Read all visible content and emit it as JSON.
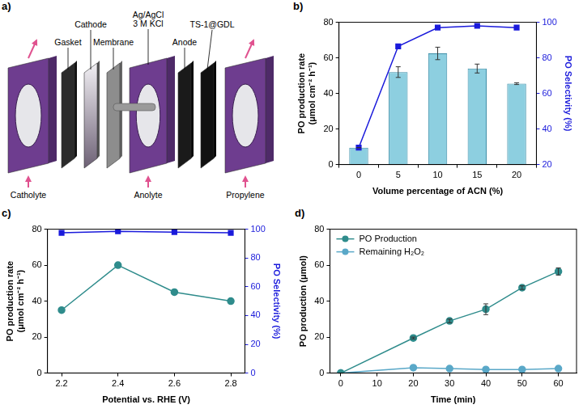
{
  "diagram": {
    "label": "a)",
    "top_labels": [
      "Gasket",
      "Cathode",
      "Membrane",
      "Ag/AgCl 3 M KCl",
      "Anode",
      "TS-1@GDL"
    ],
    "flow_labels": [
      "Catholyte",
      "Anolyte",
      "Propylene"
    ]
  },
  "chart_data": [
    {
      "panel": "b)",
      "type": "bar",
      "categories": [
        0,
        5,
        10,
        15,
        20
      ],
      "x_label": "Volume percentage of ACN (%)",
      "y_label": "PO production rate (μmol cm⁻² h⁻¹)",
      "y2_label": "PO Selectivity (%)",
      "ylim": [
        0,
        80
      ],
      "yticks": [
        0,
        20,
        40,
        60,
        80
      ],
      "y2lim": [
        20,
        100
      ],
      "y2ticks": [
        20,
        40,
        60,
        80,
        100
      ],
      "grid": false,
      "series": [
        {
          "type": "bar",
          "color": "#8dcfe0",
          "values": [
            9.5,
            52,
            62.5,
            54,
            45.5
          ],
          "errors": [
            0,
            3,
            3.5,
            2.5,
            0.5
          ]
        },
        {
          "type": "line",
          "axis": "y2",
          "color": "#1a1adb",
          "marker": "square",
          "values": [
            29.5,
            86.5,
            97,
            98,
            97
          ]
        }
      ]
    },
    {
      "panel": "c)",
      "type": "line",
      "x": [
        2.2,
        2.4,
        2.6,
        2.8
      ],
      "x_label": "Potential vs. RHE (V)",
      "y_label": "PO production rate (μmol cm⁻² h⁻¹)",
      "y2_label": "PO Selectivity (%)",
      "xlim": [
        2.15,
        2.85
      ],
      "xticks": [
        2.2,
        2.4,
        2.6,
        2.8
      ],
      "ylim": [
        0,
        80
      ],
      "yticks": [
        0,
        20,
        40,
        60,
        80
      ],
      "y2lim": [
        0,
        100
      ],
      "y2ticks": [
        0,
        20,
        40,
        60,
        80,
        100
      ],
      "grid": false,
      "series": [
        {
          "color": "#2f8c8c",
          "marker": "circle",
          "values": [
            35,
            60,
            45,
            40
          ]
        },
        {
          "axis": "y2",
          "color": "#1a1adb",
          "marker": "square",
          "values": [
            97.5,
            98.5,
            98,
            97.5
          ]
        }
      ]
    },
    {
      "panel": "d)",
      "type": "line",
      "x": [
        0,
        20,
        30,
        40,
        50,
        60
      ],
      "x_label": "Time (min)",
      "y_label": "PO production (μmol)",
      "xlim": [
        -3,
        65
      ],
      "xticks": [
        0,
        10,
        20,
        30,
        40,
        50,
        60
      ],
      "ylim": [
        0,
        80
      ],
      "yticks": [
        0,
        20,
        40,
        60,
        80
      ],
      "grid": false,
      "legend": "upper left",
      "series": [
        {
          "name": "PO Production",
          "color": "#2f8c8c",
          "marker": "circle",
          "values": [
            0,
            19.5,
            29,
            35.5,
            47.5,
            56.5
          ],
          "errors": [
            0,
            0.5,
            1,
            3,
            1,
            2
          ]
        },
        {
          "name": "Remaining H₂O₂",
          "color": "#5aa8c8",
          "marker": "circle",
          "values": [
            0,
            3,
            2.5,
            2,
            2,
            2.5
          ]
        }
      ]
    }
  ]
}
